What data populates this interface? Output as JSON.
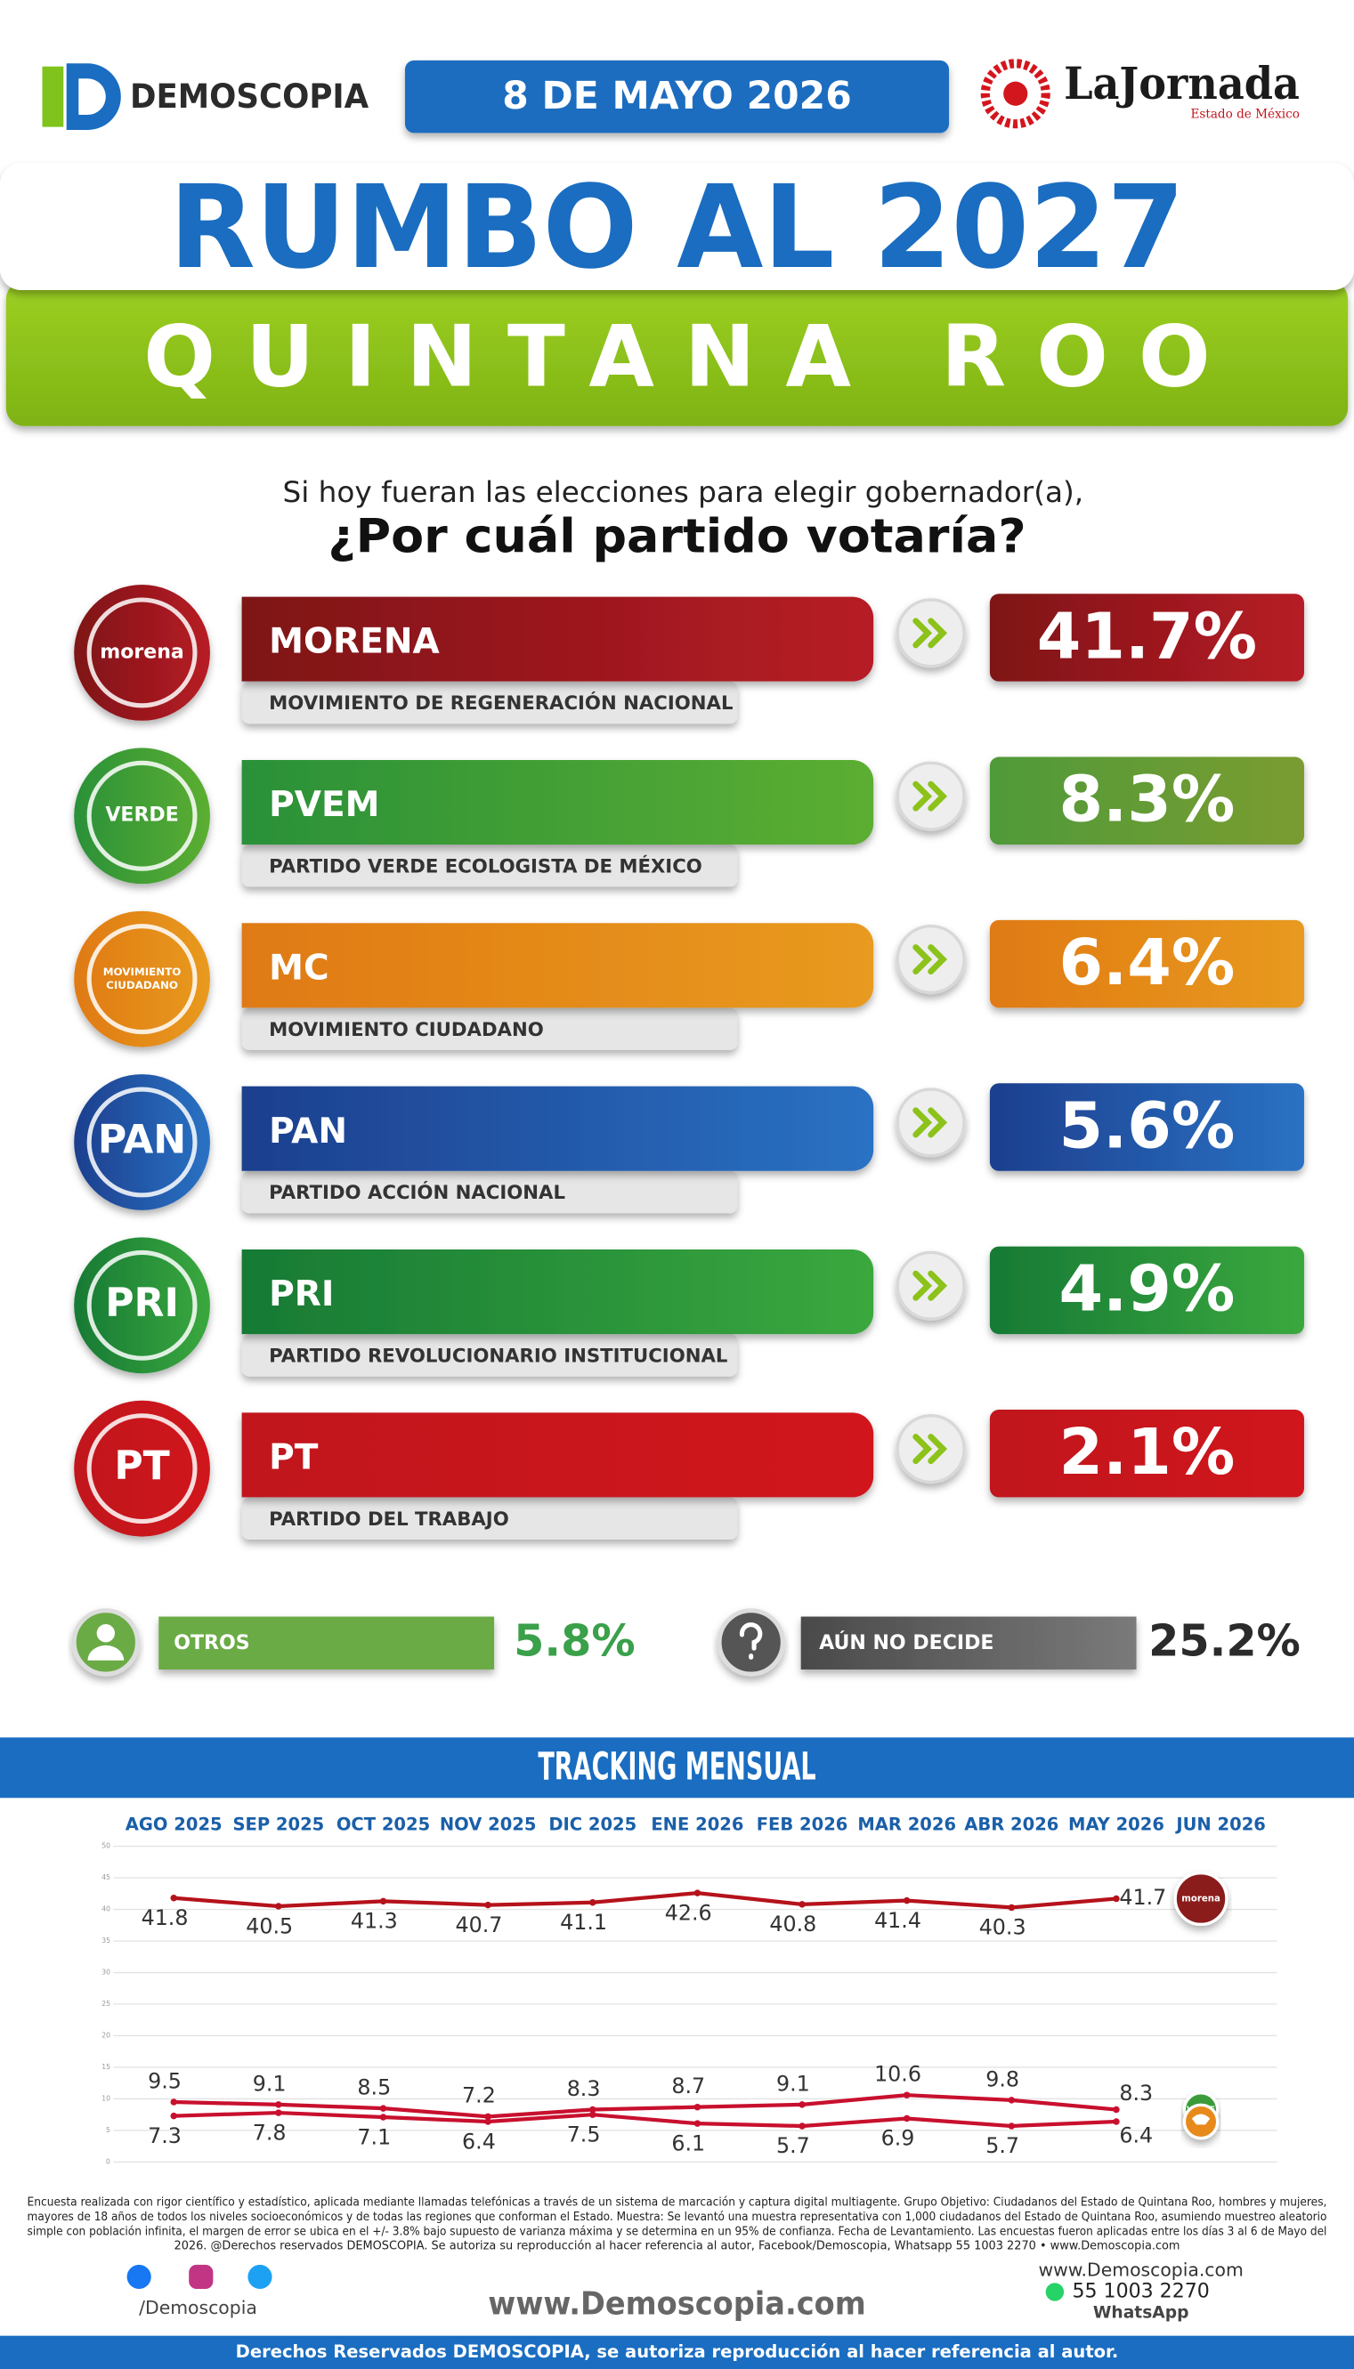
{
  "header": {
    "brand": "DEMOSCOPIA",
    "date": "8 DE MAYO 2026",
    "partner": "LaJornada",
    "partner_sub": "Estado de México"
  },
  "title": "RUMBO AL 2027",
  "subtitle": "QUINTANA ROO",
  "question": {
    "line1": "Si hoy fueran las elecciones para elegir gobernador(a),",
    "line2": "¿Por cuál partido votaría?"
  },
  "parties": [
    {
      "logo": [
        "morena"
      ],
      "abbr": "MORENA",
      "name": "MOVIMIENTO DE REGENERACIÓN NACIONAL",
      "value": "41.7%",
      "colors": [
        "#7e1417",
        "#b71c25"
      ]
    },
    {
      "logo": [
        "VERDE"
      ],
      "abbr": "PVEM",
      "name": "PARTIDO VERDE ECOLOGISTA DE MÉXICO",
      "value": "8.3%",
      "colors": [
        "#2a9138",
        "#5cae32"
      ],
      "value_colors": [
        "#4f9a3a",
        "#7a9c30"
      ]
    },
    {
      "logo": [
        "MOVIMIENTO",
        "CIUDADANO"
      ],
      "abbr": "MC",
      "name": "MOVIMIENTO CIUDADANO",
      "value": "6.4%",
      "colors": [
        "#e07a12",
        "#e89a20"
      ]
    },
    {
      "logo": [
        "PAN"
      ],
      "abbr": "PAN",
      "name": "PARTIDO ACCIÓN NACIONAL",
      "value": "5.6%",
      "colors": [
        "#1d3f8e",
        "#2a72c4"
      ]
    },
    {
      "logo": [
        "PRI"
      ],
      "abbr": "PRI",
      "name": "PARTIDO REVOLUCIONARIO INSTITUCIONAL",
      "value": "4.9%",
      "colors": [
        "#177a35",
        "#3aa83e"
      ]
    },
    {
      "logo": [
        "PT"
      ],
      "abbr": "PT",
      "name": "PARTIDO DEL TRABAJO",
      "value": "2.1%",
      "colors": [
        "#c0121a",
        "#d0161e"
      ]
    }
  ],
  "others": {
    "label": "OTROS",
    "value": "5.8%"
  },
  "undecided": {
    "label": "AÚN NO DECIDE",
    "value": "25.2%"
  },
  "chart_data": {
    "type": "line",
    "title": "TRACKING MENSUAL",
    "categories": [
      "AGO 2025",
      "SEP 2025",
      "OCT 2025",
      "NOV 2025",
      "DIC 2025",
      "ENE 2026",
      "FEB 2026",
      "MAR 2026",
      "ABR 2026",
      "MAY 2026",
      "JUN 2026"
    ],
    "series": [
      {
        "name": "morena",
        "color": "#b5121b",
        "label_position": "below",
        "values": [
          41.8,
          40.5,
          41.3,
          40.7,
          41.1,
          42.6,
          40.8,
          41.4,
          40.3,
          41.7,
          null
        ]
      },
      {
        "name": "VERDE",
        "color": "#c8102e",
        "label_position": "above",
        "values": [
          9.5,
          9.1,
          8.5,
          7.2,
          8.3,
          8.7,
          9.1,
          10.6,
          9.8,
          8.3,
          null
        ]
      },
      {
        "color": "#c8102e",
        "label_position": "below",
        "values": [
          7.3,
          7.8,
          7.1,
          6.4,
          7.5,
          6.1,
          5.7,
          6.9,
          5.7,
          6.4,
          null
        ]
      }
    ],
    "ylim": [
      0,
      50
    ],
    "yticks": [
      0,
      5,
      10,
      15,
      20,
      25,
      30,
      35,
      40,
      45,
      50
    ],
    "grid": true
  },
  "footnote": [
    "Encuesta realizada con rigor científico y estadístico, aplicada mediante llamadas telefónicas a través de un sistema de marcación y captura digital multiagente. Grupo Objetivo: Ciudadanos del Estado de Quintana Roo, hombres y mujeres,",
    "mayores de 18 años de todos los niveles socioeconómicos y de todas las regiones que conforman el Estado. Muestra: Se levantó una muestra representativa con 1,000 ciudadanos del Estado de Quintana Roo, asumiendo muestreo aleatorio",
    "simple con población infinita, el margen de error se ubica en el +/- 3.8% bajo supuesto de varianza máxima y se determina en un 95% de confianza. Fecha de Levantamiento. Las encuestas fueron aplicadas entre los días 3 al 6 de Mayo del",
    "2026. @Derechos reservados DEMOSCOPIA. Se autoriza su reproducción al hacer referencia al autor, Facebook/Demoscopia, Whatsapp 55 1003 2270 • www.Demoscopia.com"
  ],
  "footer": {
    "social": "/Demoscopia",
    "site": "www.Demoscopia.com",
    "contact_site": "www.Demoscopia.com",
    "phone": "55 1003 2270",
    "whatsapp": "WhatsApp",
    "rights": "Derechos Reservados DEMOSCOPIA, se autoriza reproducción al hacer referencia al autor."
  }
}
